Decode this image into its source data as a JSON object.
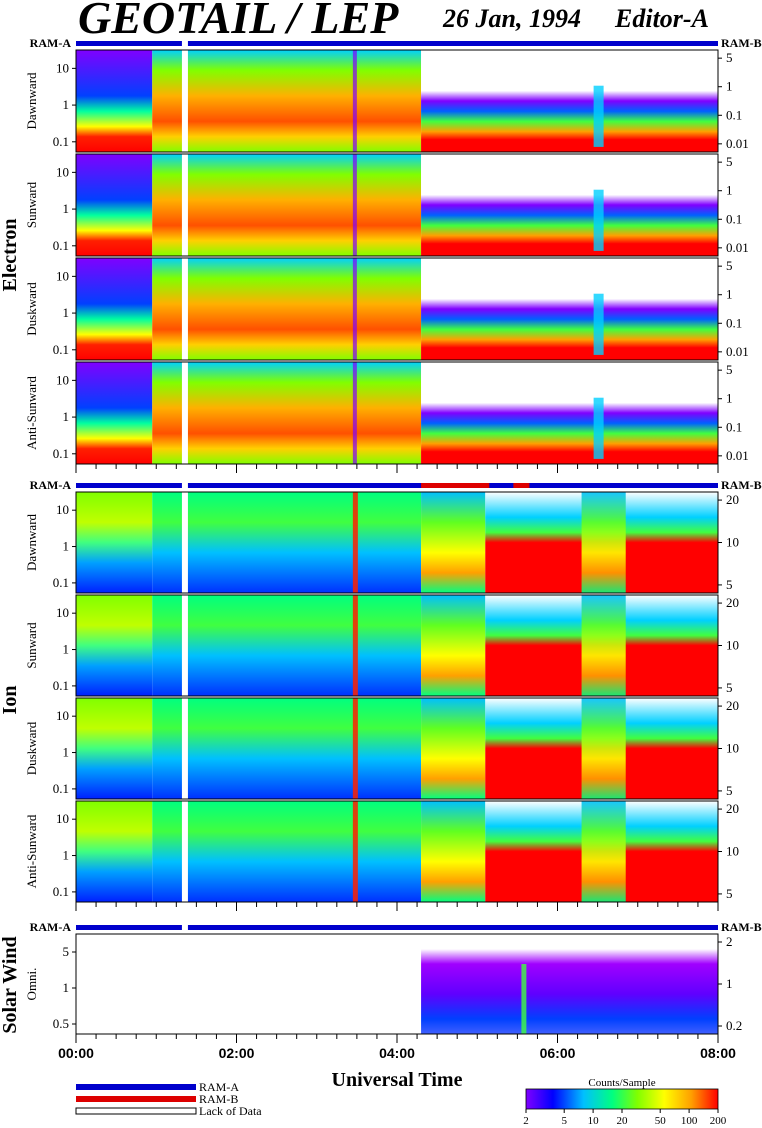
{
  "header": {
    "title": "GEOTAIL / LEP",
    "date": "26 Jan, 1994",
    "editor": "Editor-A"
  },
  "chart_data": {
    "type": "heatmap",
    "xlabel": "Universal Time",
    "x_ticks": [
      "00:00",
      "02:00",
      "04:00",
      "06:00",
      "08:00"
    ],
    "x_range_hours": [
      0,
      8
    ],
    "groups": [
      {
        "name": "Electron",
        "ram_left": "RAM-A",
        "ram_right": "RAM-B",
        "left_ticks": [
          "10",
          "1",
          "0.1"
        ],
        "right_ticks": [
          "5",
          "1",
          "0.1",
          "0.01"
        ],
        "panels": [
          "Dawnward",
          "Sunward",
          "Duskward",
          "Anti-Sunward"
        ]
      },
      {
        "name": "Ion",
        "ram_left": "RAM-A",
        "ram_right": "RAM-B",
        "left_ticks": [
          "10",
          "1",
          "0.1"
        ],
        "right_ticks": [
          "20",
          "10",
          "5"
        ],
        "panels": [
          "Dawnward",
          "Sunward",
          "Duskward",
          "Anti-Sunward"
        ]
      },
      {
        "name": "Solar Wind",
        "ram_left": "RAM-A",
        "ram_right": "RAM-B",
        "left_ticks": [
          "5",
          "1",
          "0.5"
        ],
        "right_ticks": [
          "2",
          "1",
          "0.2"
        ],
        "panels": [
          "Omni."
        ]
      }
    ],
    "status_legend": [
      {
        "label": "RAM-A",
        "color": "#0000cc"
      },
      {
        "label": "RAM-B",
        "color": "#dd0000"
      },
      {
        "label": "Lack of Data",
        "color": "#ffffff"
      }
    ],
    "colorbar": {
      "title": "Counts/Sample",
      "ticks": [
        "2",
        "5",
        "10",
        "20",
        "50",
        "100",
        "200"
      ],
      "colors": [
        "#8000ff",
        "#0000ff",
        "#00c0ff",
        "#00ff80",
        "#80ff00",
        "#ffff00",
        "#ffa000",
        "#ff0000"
      ]
    }
  }
}
